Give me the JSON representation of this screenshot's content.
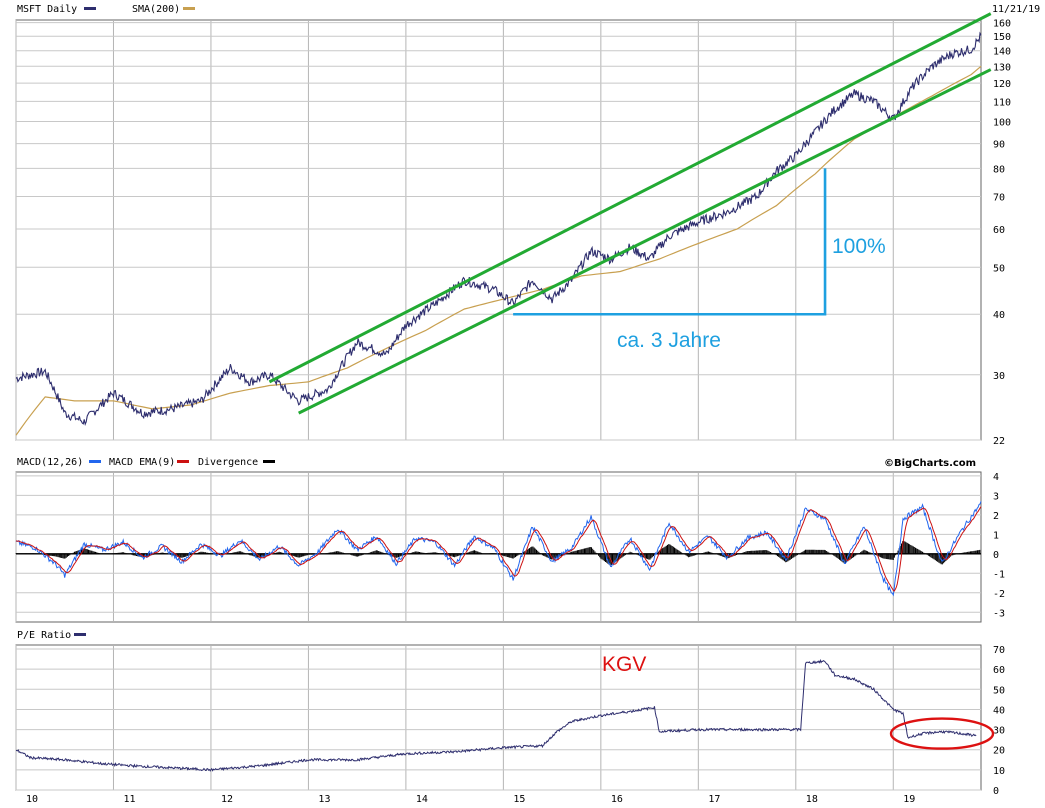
{
  "chart_data": [
    {
      "type": "line",
      "panel": "price",
      "header": {
        "series1": "MSFT Daily",
        "series2": "SMA(200)",
        "date": "11/21/19"
      },
      "colors": {
        "price": "#2e2e6e",
        "sma": "#c8a050",
        "channel": "#22aa33",
        "annotation": "#1ea0e0"
      },
      "yaxis": {
        "scale": "log",
        "range": [
          22,
          162
        ],
        "ticks": [
          "160",
          "150",
          "140",
          "130",
          "120",
          "110",
          "100",
          "90",
          "80",
          "70",
          "60",
          "50",
          "40",
          "30",
          "22"
        ]
      },
      "xaxis": {
        "range": [
          10.0,
          19.9
        ],
        "ticks": [
          "10",
          "11",
          "12",
          "13",
          "14",
          "15",
          "16",
          "17",
          "18",
          "19"
        ]
      },
      "series": [
        {
          "name": "MSFT Daily",
          "x": [
            10.0,
            10.3,
            10.5,
            10.7,
            11.0,
            11.3,
            11.6,
            11.9,
            12.2,
            12.4,
            12.6,
            12.8,
            12.9,
            13.2,
            13.5,
            13.8,
            14.0,
            14.3,
            14.6,
            14.9,
            15.1,
            15.3,
            15.5,
            15.7,
            15.9,
            16.1,
            16.3,
            16.5,
            16.7,
            17.0,
            17.3,
            17.6,
            17.8,
            18.0,
            18.2,
            18.4,
            18.6,
            18.8,
            19.0,
            19.2,
            19.4,
            19.6,
            19.8,
            19.9
          ],
          "y": [
            29.5,
            30.5,
            25,
            24,
            27.5,
            25,
            25.5,
            26.5,
            31,
            29,
            30,
            27.5,
            26.5,
            28,
            35,
            33,
            38,
            42,
            47,
            45,
            42,
            47,
            43,
            47,
            54,
            52,
            55,
            52,
            58,
            62,
            65,
            70,
            79,
            85,
            95,
            106,
            114,
            110,
            101,
            118,
            130,
            138,
            141,
            150
          ]
        },
        {
          "name": "SMA(200)",
          "x": [
            10.0,
            10.3,
            10.6,
            11.0,
            11.4,
            11.8,
            12.2,
            12.6,
            13.0,
            13.4,
            13.8,
            14.2,
            14.6,
            15.0,
            15.4,
            15.8,
            16.2,
            16.6,
            17.0,
            17.4,
            17.8,
            18.2,
            18.6,
            19.0,
            19.4,
            19.8,
            19.9
          ],
          "y": [
            22.5,
            27,
            26.5,
            26.5,
            25.5,
            26,
            27.5,
            28.5,
            29,
            31,
            34,
            37,
            41,
            43,
            45,
            48,
            49,
            52,
            56,
            60,
            67,
            78,
            92,
            102,
            113,
            125,
            130
          ]
        }
      ],
      "channel_lines": [
        {
          "x": [
            12.6,
            20.0
          ],
          "y": [
            29,
            167
          ]
        },
        {
          "x": [
            12.9,
            20.0
          ],
          "y": [
            25,
            128
          ]
        }
      ],
      "annotations": {
        "bracket": {
          "x": [
            15.1,
            18.3
          ],
          "y_bottom": 40,
          "y_top": 80
        },
        "label_percent": "100%",
        "label_time": "ca. 3 Jahre"
      }
    },
    {
      "type": "line",
      "panel": "macd",
      "header": {
        "series1": "MACD(12,26)",
        "series2": "MACD EMA(9)",
        "series3": "Divergence",
        "credit": "©BigCharts.com"
      },
      "colors": {
        "macd": "#2266ee",
        "ema": "#cc1111",
        "divergence": "#000000"
      },
      "yaxis": {
        "range": [
          -3.5,
          4.2
        ],
        "ticks": [
          "4",
          "3",
          "2",
          "1",
          "0",
          "-1",
          "-2",
          "-3"
        ]
      },
      "series": [
        {
          "name": "MACD(12,26)",
          "x": [
            10.0,
            10.2,
            10.4,
            10.5,
            10.7,
            10.9,
            11.1,
            11.3,
            11.5,
            11.7,
            11.9,
            12.1,
            12.3,
            12.5,
            12.7,
            12.9,
            13.1,
            13.3,
            13.5,
            13.7,
            13.9,
            14.1,
            14.3,
            14.5,
            14.7,
            14.9,
            15.1,
            15.3,
            15.5,
            15.7,
            15.9,
            16.1,
            16.3,
            16.5,
            16.7,
            16.9,
            17.1,
            17.3,
            17.5,
            17.7,
            17.9,
            18.1,
            18.3,
            18.5,
            18.7,
            18.9,
            19.0,
            19.1,
            19.3,
            19.5,
            19.7,
            19.9
          ],
          "y": [
            0.6,
            0.3,
            -0.5,
            -1.1,
            0.5,
            0.2,
            0.6,
            -0.2,
            0.4,
            -0.4,
            0.5,
            -0.1,
            0.7,
            -0.3,
            0.4,
            -0.6,
            0.1,
            1.3,
            0.2,
            0.9,
            -0.5,
            0.8,
            0.6,
            -0.6,
            0.9,
            0.3,
            -1.3,
            1.4,
            -0.4,
            0.3,
            1.9,
            -0.7,
            0.8,
            -0.8,
            1.6,
            0.1,
            0.9,
            -0.2,
            0.8,
            1.1,
            -0.3,
            2.3,
            1.8,
            -0.5,
            1.4,
            -1.3,
            -2.2,
            1.8,
            2.4,
            -0.5,
            1.2,
            2.6
          ]
        },
        {
          "name": "MACD EMA(9)",
          "x": [
            10.0,
            10.3,
            10.6,
            10.9,
            11.2,
            11.5,
            11.8,
            12.1,
            12.4,
            12.7,
            13.0,
            13.3,
            13.6,
            13.9,
            14.2,
            14.5,
            14.8,
            15.1,
            15.4,
            15.7,
            16.0,
            16.3,
            16.6,
            16.9,
            17.2,
            17.5,
            17.8,
            18.1,
            18.4,
            18.7,
            19.0,
            19.3,
            19.6,
            19.9
          ],
          "y": [
            0.5,
            0.1,
            -0.6,
            0.3,
            0.4,
            0.2,
            0.2,
            0.1,
            0.4,
            0.1,
            -0.1,
            0.9,
            0.5,
            0.1,
            0.6,
            -0.1,
            0.6,
            -0.6,
            0.7,
            0.0,
            1.3,
            0.5,
            -0.1,
            0.6,
            0.5,
            0.4,
            0.6,
            1.7,
            1.0,
            0.8,
            -1.3,
            2.1,
            0.6,
            2.0
          ]
        }
      ]
    },
    {
      "type": "line",
      "panel": "pe",
      "header": {
        "series1": "P/E Ratio"
      },
      "colors": {
        "pe": "#2e2e6e",
        "marker": "#dd1111"
      },
      "yaxis": {
        "range": [
          0,
          72
        ],
        "ticks": [
          "70",
          "60",
          "50",
          "40",
          "30",
          "20",
          "10",
          "0"
        ]
      },
      "xaxis": {
        "ticks": [
          "10",
          "11",
          "12",
          "13",
          "14",
          "15",
          "16",
          "17",
          "18",
          "19"
        ]
      },
      "series": [
        {
          "name": "P/E Ratio",
          "x": [
            10.0,
            10.15,
            10.5,
            10.9,
            11.2,
            11.6,
            12.0,
            12.5,
            13.0,
            13.5,
            14.0,
            14.5,
            15.0,
            15.4,
            15.55,
            15.7,
            16.0,
            16.3,
            16.55,
            16.6,
            17.0,
            17.5,
            17.9,
            18.05,
            18.1,
            18.3,
            18.4,
            18.6,
            18.8,
            19.0,
            19.1,
            19.15,
            19.3,
            19.5,
            19.7,
            19.85
          ],
          "y": [
            20,
            16,
            15,
            13,
            12,
            11,
            10,
            12,
            15,
            15,
            18,
            19,
            21,
            22,
            29,
            34,
            37,
            39,
            41,
            29,
            30,
            30,
            30,
            30,
            63,
            64,
            57,
            55,
            50,
            40,
            38,
            26,
            28,
            29,
            28,
            27
          ]
        }
      ],
      "annotations": {
        "label": "KGV",
        "ellipse_center": {
          "x": 19.5,
          "y": 28
        }
      }
    }
  ]
}
